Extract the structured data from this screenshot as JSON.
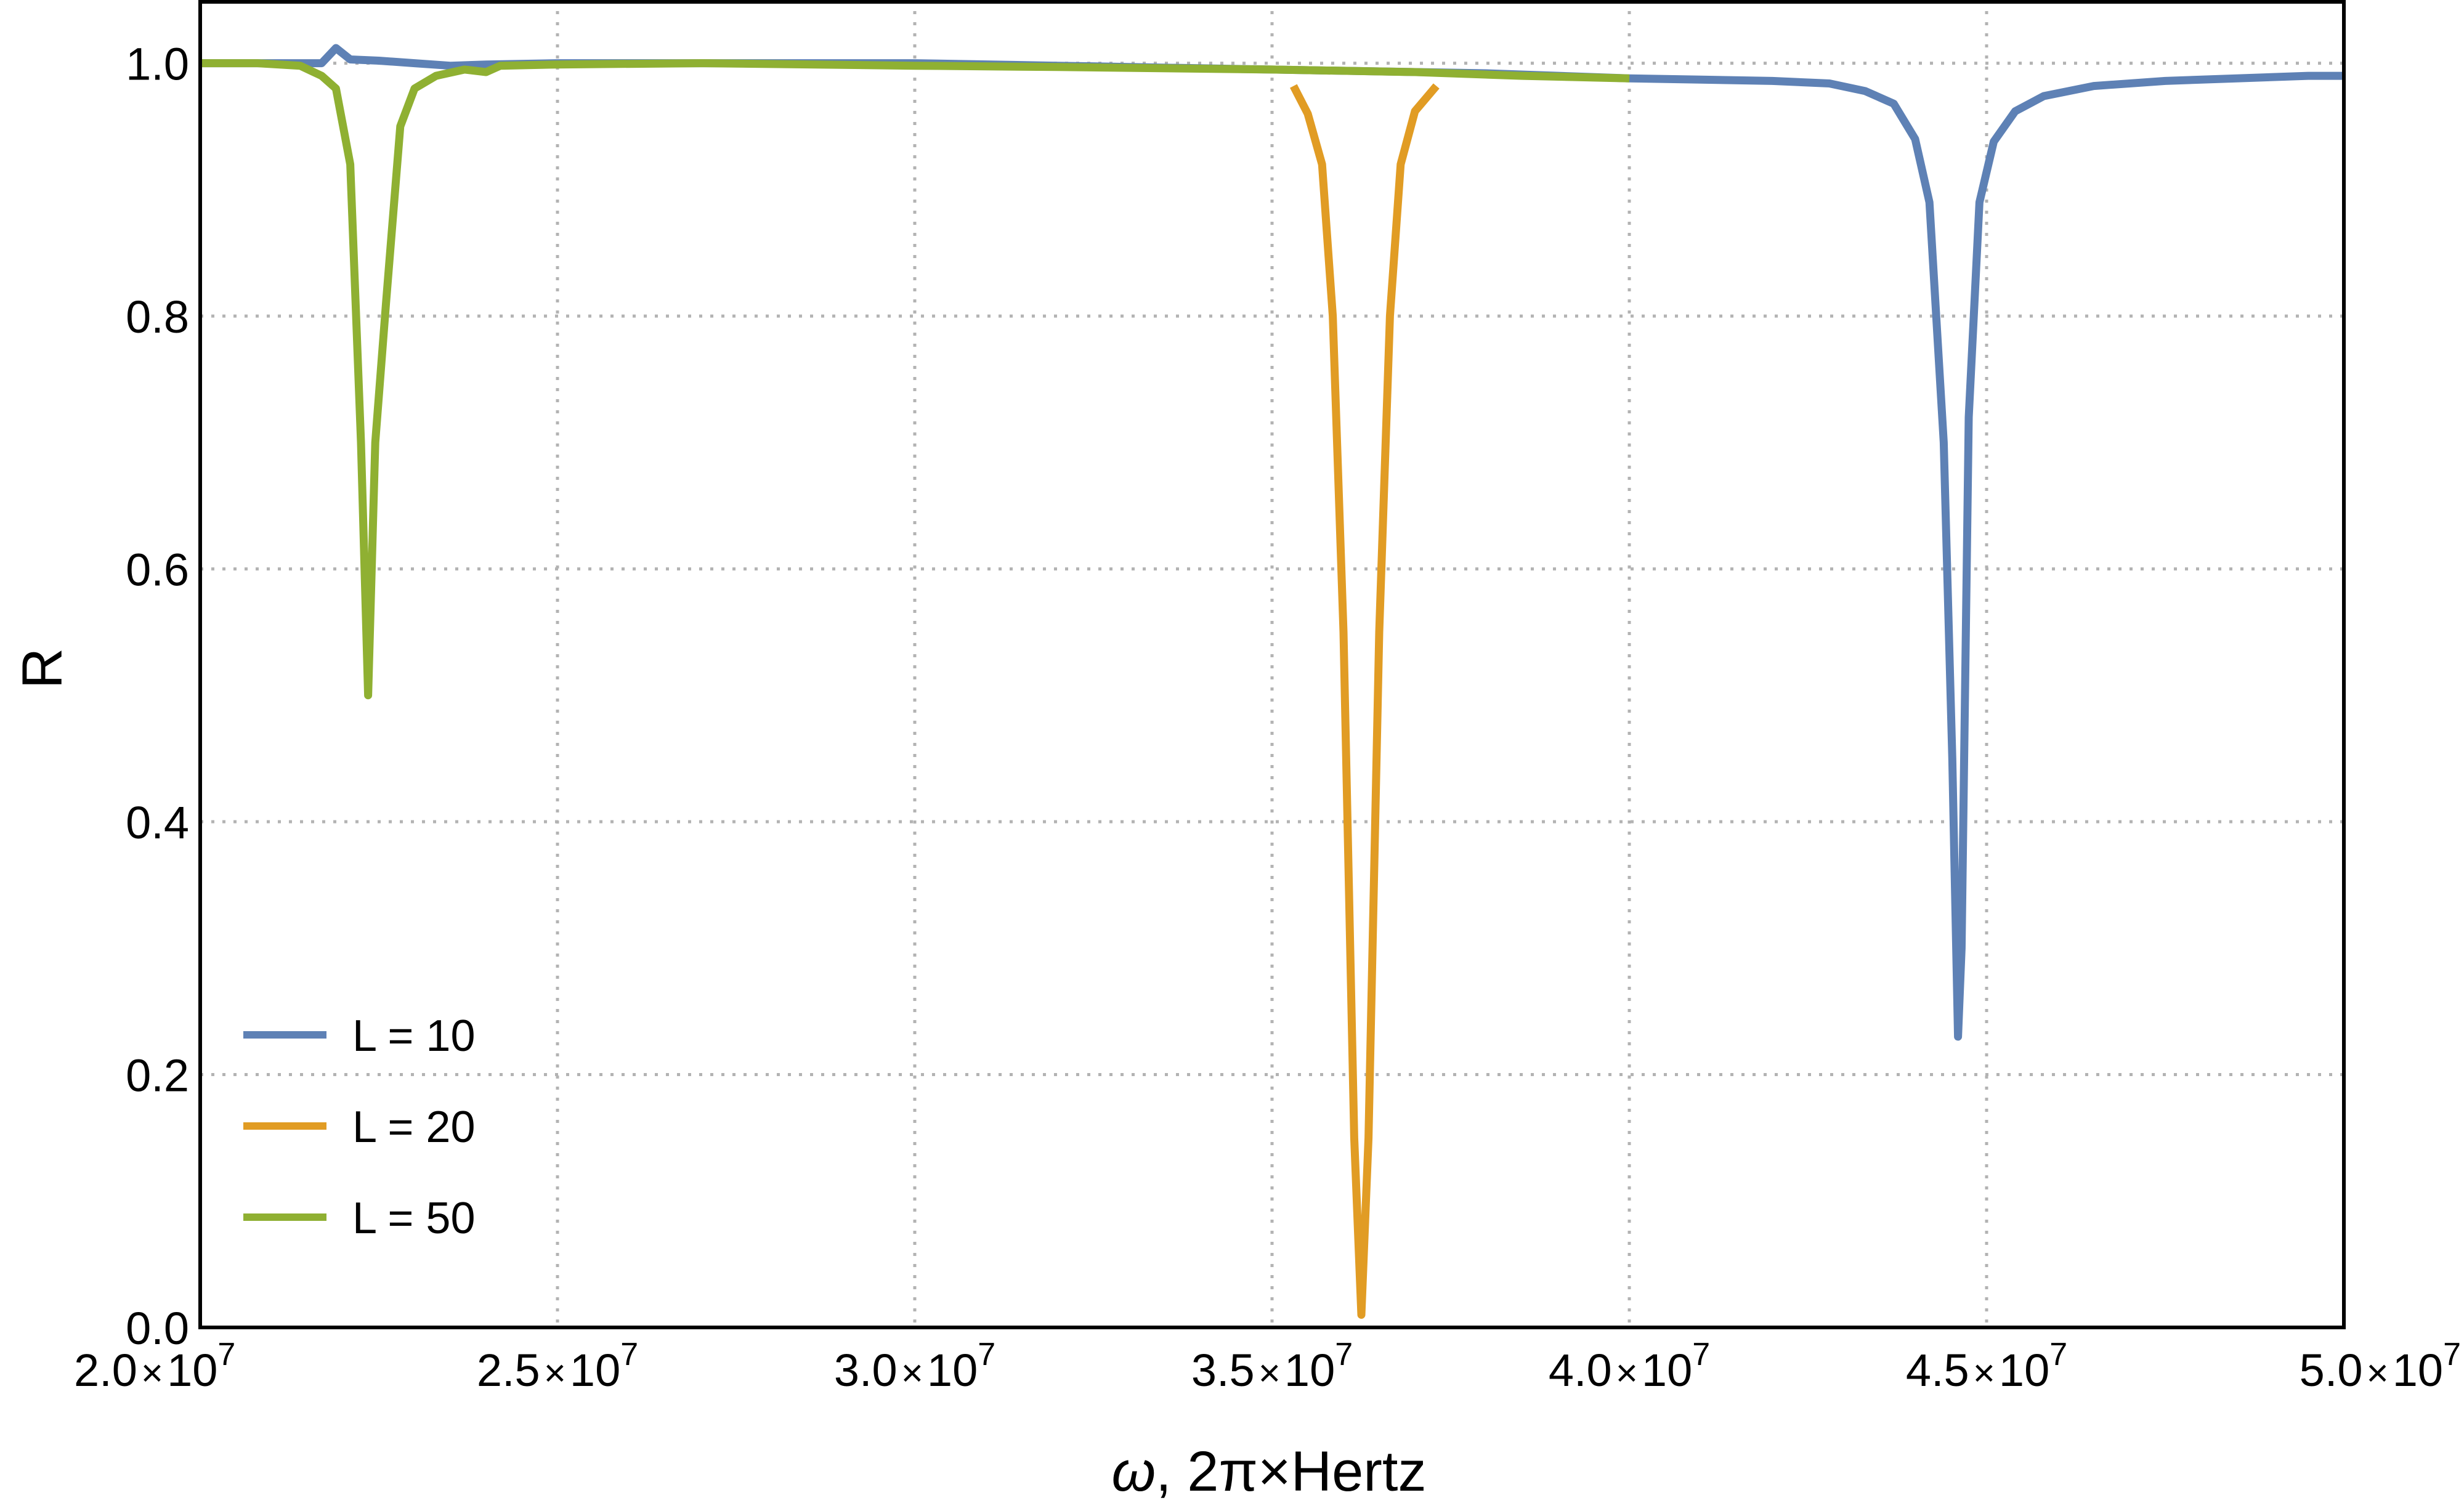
{
  "chart_data": {
    "type": "line",
    "title": "",
    "xlabel_main": "ω",
    "xlabel_rest": ", 2π×Hertz",
    "ylabel": "R",
    "xlim": [
      20000000,
      50000000
    ],
    "ylim": [
      0,
      1.0
    ],
    "x_ticks": [
      {
        "value": 20000000,
        "mantissa": "2.0",
        "times": "×",
        "base": "10",
        "exp": "7"
      },
      {
        "value": 25000000,
        "mantissa": "2.5",
        "times": "×",
        "base": "10",
        "exp": "7"
      },
      {
        "value": 30000000,
        "mantissa": "3.0",
        "times": "×",
        "base": "10",
        "exp": "7"
      },
      {
        "value": 35000000,
        "mantissa": "3.5",
        "times": "×",
        "base": "10",
        "exp": "7"
      },
      {
        "value": 40000000,
        "mantissa": "4.0",
        "times": "×",
        "base": "10",
        "exp": "7"
      },
      {
        "value": 45000000,
        "mantissa": "4.5",
        "times": "×",
        "base": "10",
        "exp": "7"
      },
      {
        "value": 50000000,
        "mantissa": "5.0",
        "times": "×",
        "base": "10",
        "exp": "7"
      }
    ],
    "y_ticks": [
      {
        "value": 0.0,
        "label": "0.0"
      },
      {
        "value": 0.2,
        "label": "0.2"
      },
      {
        "value": 0.4,
        "label": "0.4"
      },
      {
        "value": 0.6,
        "label": "0.6"
      },
      {
        "value": 0.8,
        "label": "0.8"
      },
      {
        "value": 1.0,
        "label": "1.0"
      }
    ],
    "grid": true,
    "legend_position": "bottom-left",
    "series": [
      {
        "name": "L = 10",
        "color": "#5e81b5",
        "points": [
          [
            20000000,
            1.0
          ],
          [
            21000000,
            1.0
          ],
          [
            21700000,
            1.0
          ],
          [
            21900000,
            1.012
          ],
          [
            22100000,
            1.003
          ],
          [
            22500000,
            1.002
          ],
          [
            23000000,
            1.0
          ],
          [
            23500000,
            0.998
          ],
          [
            24000000,
            0.999
          ],
          [
            25000000,
            1.0
          ],
          [
            27000000,
            1.0
          ],
          [
            30000000,
            1.0
          ],
          [
            32000000,
            0.998
          ],
          [
            35000000,
            0.995
          ],
          [
            38000000,
            0.992
          ],
          [
            40000000,
            0.988
          ],
          [
            41000000,
            0.987
          ],
          [
            42000000,
            0.986
          ],
          [
            42800000,
            0.984
          ],
          [
            43300000,
            0.978
          ],
          [
            43700000,
            0.968
          ],
          [
            44000000,
            0.94
          ],
          [
            44200000,
            0.89
          ],
          [
            44400000,
            0.7
          ],
          [
            44520000,
            0.45
          ],
          [
            44600000,
            0.23
          ],
          [
            44650000,
            0.3
          ],
          [
            44750000,
            0.72
          ],
          [
            44900000,
            0.89
          ],
          [
            45100000,
            0.938
          ],
          [
            45400000,
            0.962
          ],
          [
            45800000,
            0.974
          ],
          [
            46500000,
            0.982
          ],
          [
            47500000,
            0.986
          ],
          [
            48500000,
            0.988
          ],
          [
            49500000,
            0.99
          ],
          [
            50000000,
            0.99
          ]
        ]
      },
      {
        "name": "L = 20",
        "color": "#e19c24",
        "points": [
          [
            35300000,
            0.982
          ],
          [
            35500000,
            0.96
          ],
          [
            35700000,
            0.92
          ],
          [
            35850000,
            0.8
          ],
          [
            36000000,
            0.55
          ],
          [
            36150000,
            0.15
          ],
          [
            36250000,
            0.01
          ],
          [
            36350000,
            0.15
          ],
          [
            36500000,
            0.55
          ],
          [
            36650000,
            0.8
          ],
          [
            36800000,
            0.92
          ],
          [
            37000000,
            0.962
          ],
          [
            37300000,
            0.982
          ]
        ]
      },
      {
        "name": "L = 50",
        "color": "#8fb032",
        "points": [
          [
            20000000,
            1.0
          ],
          [
            20800000,
            1.0
          ],
          [
            21400000,
            0.998
          ],
          [
            21700000,
            0.99
          ],
          [
            21900000,
            0.98
          ],
          [
            22100000,
            0.92
          ],
          [
            22250000,
            0.7
          ],
          [
            22350000,
            0.5
          ],
          [
            22450000,
            0.7
          ],
          [
            22600000,
            0.81
          ],
          [
            22800000,
            0.95
          ],
          [
            23000000,
            0.98
          ],
          [
            23300000,
            0.99
          ],
          [
            23700000,
            0.995
          ],
          [
            24000000,
            0.993
          ],
          [
            24200000,
            0.998
          ],
          [
            25000000,
            0.999
          ],
          [
            27000000,
            1.0
          ],
          [
            30000000,
            0.998
          ],
          [
            32000000,
            0.997
          ],
          [
            35000000,
            0.995
          ],
          [
            37000000,
            0.993
          ],
          [
            38500000,
            0.99
          ],
          [
            40000000,
            0.988
          ]
        ]
      }
    ]
  }
}
